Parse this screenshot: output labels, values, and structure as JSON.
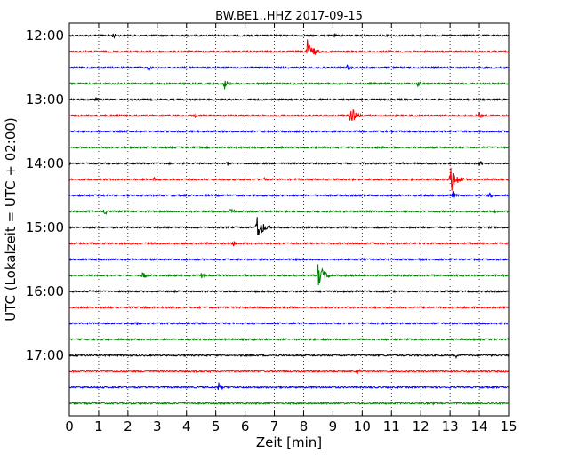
{
  "chart_data": {
    "type": "line",
    "title": "BW.BE1..HHZ 2017-09-15",
    "xlabel": "Zeit  [min]",
    "ylabel": "UTC (Lokalzeit = UTC + 02:00)",
    "xlim": [
      0,
      15
    ],
    "x_ticks": [
      "0",
      "1",
      "2",
      "3",
      "4",
      "5",
      "6",
      "7",
      "8",
      "9",
      "10",
      "11",
      "12",
      "13",
      "14",
      "15"
    ],
    "y_tick_labels": [
      "12:00",
      "13:00",
      "14:00",
      "15:00",
      "16:00",
      "17:00"
    ],
    "grid": "vertical-dotted",
    "series_colors": [
      "#000000",
      "#ff0000",
      "#0000ff",
      "#008000"
    ],
    "traces": [
      {
        "time": "12:00",
        "color": "#000000",
        "events": [
          {
            "t": 1.5,
            "amp": 4
          },
          {
            "t": 9.0,
            "amp": 3
          }
        ]
      },
      {
        "time": "12:15",
        "color": "#ff0000",
        "events": [
          {
            "t": 8.1,
            "amp": 16
          },
          {
            "t": 10.9,
            "amp": 3
          }
        ]
      },
      {
        "time": "12:30",
        "color": "#0000ff",
        "events": [
          {
            "t": 2.7,
            "amp": 4
          },
          {
            "t": 9.5,
            "amp": 5
          }
        ]
      },
      {
        "time": "12:45",
        "color": "#008000",
        "events": [
          {
            "t": 5.3,
            "amp": 7
          },
          {
            "t": 11.9,
            "amp": 4
          }
        ]
      },
      {
        "time": "13:00",
        "color": "#000000",
        "events": [
          {
            "t": 0.9,
            "amp": 4
          }
        ]
      },
      {
        "time": "13:15",
        "color": "#ff0000",
        "events": [
          {
            "t": 4.3,
            "amp": 3
          },
          {
            "t": 9.6,
            "amp": 12
          },
          {
            "t": 14.0,
            "amp": 4
          }
        ]
      },
      {
        "time": "13:30",
        "color": "#0000ff",
        "events": []
      },
      {
        "time": "13:45",
        "color": "#008000",
        "events": []
      },
      {
        "time": "14:00",
        "color": "#000000",
        "events": [
          {
            "t": 5.4,
            "amp": 4
          },
          {
            "t": 14.0,
            "amp": 4
          }
        ]
      },
      {
        "time": "14:15",
        "color": "#ff0000",
        "events": [
          {
            "t": 2.9,
            "amp": 3
          },
          {
            "t": 6.6,
            "amp": 4
          },
          {
            "t": 13.0,
            "amp": 18
          }
        ]
      },
      {
        "time": "14:30",
        "color": "#0000ff",
        "events": [
          {
            "t": 13.1,
            "amp": 5
          },
          {
            "t": 14.3,
            "amp": 6
          }
        ]
      },
      {
        "time": "14:45",
        "color": "#008000",
        "events": [
          {
            "t": 1.2,
            "amp": 6
          },
          {
            "t": 5.5,
            "amp": 6
          },
          {
            "t": 14.5,
            "amp": 3
          }
        ]
      },
      {
        "time": "15:00",
        "color": "#000000",
        "events": [
          {
            "t": 6.4,
            "amp": 16
          }
        ]
      },
      {
        "time": "15:15",
        "color": "#ff0000",
        "events": [
          {
            "t": 5.6,
            "amp": 4
          }
        ]
      },
      {
        "time": "15:30",
        "color": "#0000ff",
        "events": []
      },
      {
        "time": "15:45",
        "color": "#008000",
        "events": [
          {
            "t": 2.5,
            "amp": 5
          },
          {
            "t": 4.5,
            "amp": 4
          },
          {
            "t": 8.5,
            "amp": 16
          }
        ]
      },
      {
        "time": "16:00",
        "color": "#000000",
        "events": [
          {
            "t": 0.7,
            "amp": 3
          }
        ]
      },
      {
        "time": "16:15",
        "color": "#ff0000",
        "events": []
      },
      {
        "time": "16:30",
        "color": "#0000ff",
        "events": [
          {
            "t": 2.3,
            "amp": 3
          }
        ]
      },
      {
        "time": "16:45",
        "color": "#008000",
        "events": []
      },
      {
        "time": "17:00",
        "color": "#000000",
        "events": [
          {
            "t": 13.2,
            "amp": 3
          }
        ]
      },
      {
        "time": "17:15",
        "color": "#ff0000",
        "events": [
          {
            "t": 9.8,
            "amp": 5
          }
        ]
      },
      {
        "time": "17:30",
        "color": "#0000ff",
        "events": [
          {
            "t": 5.1,
            "amp": 6
          }
        ]
      },
      {
        "time": "17:45",
        "color": "#008000",
        "events": [
          {
            "t": 12.4,
            "amp": 2
          }
        ]
      }
    ]
  }
}
